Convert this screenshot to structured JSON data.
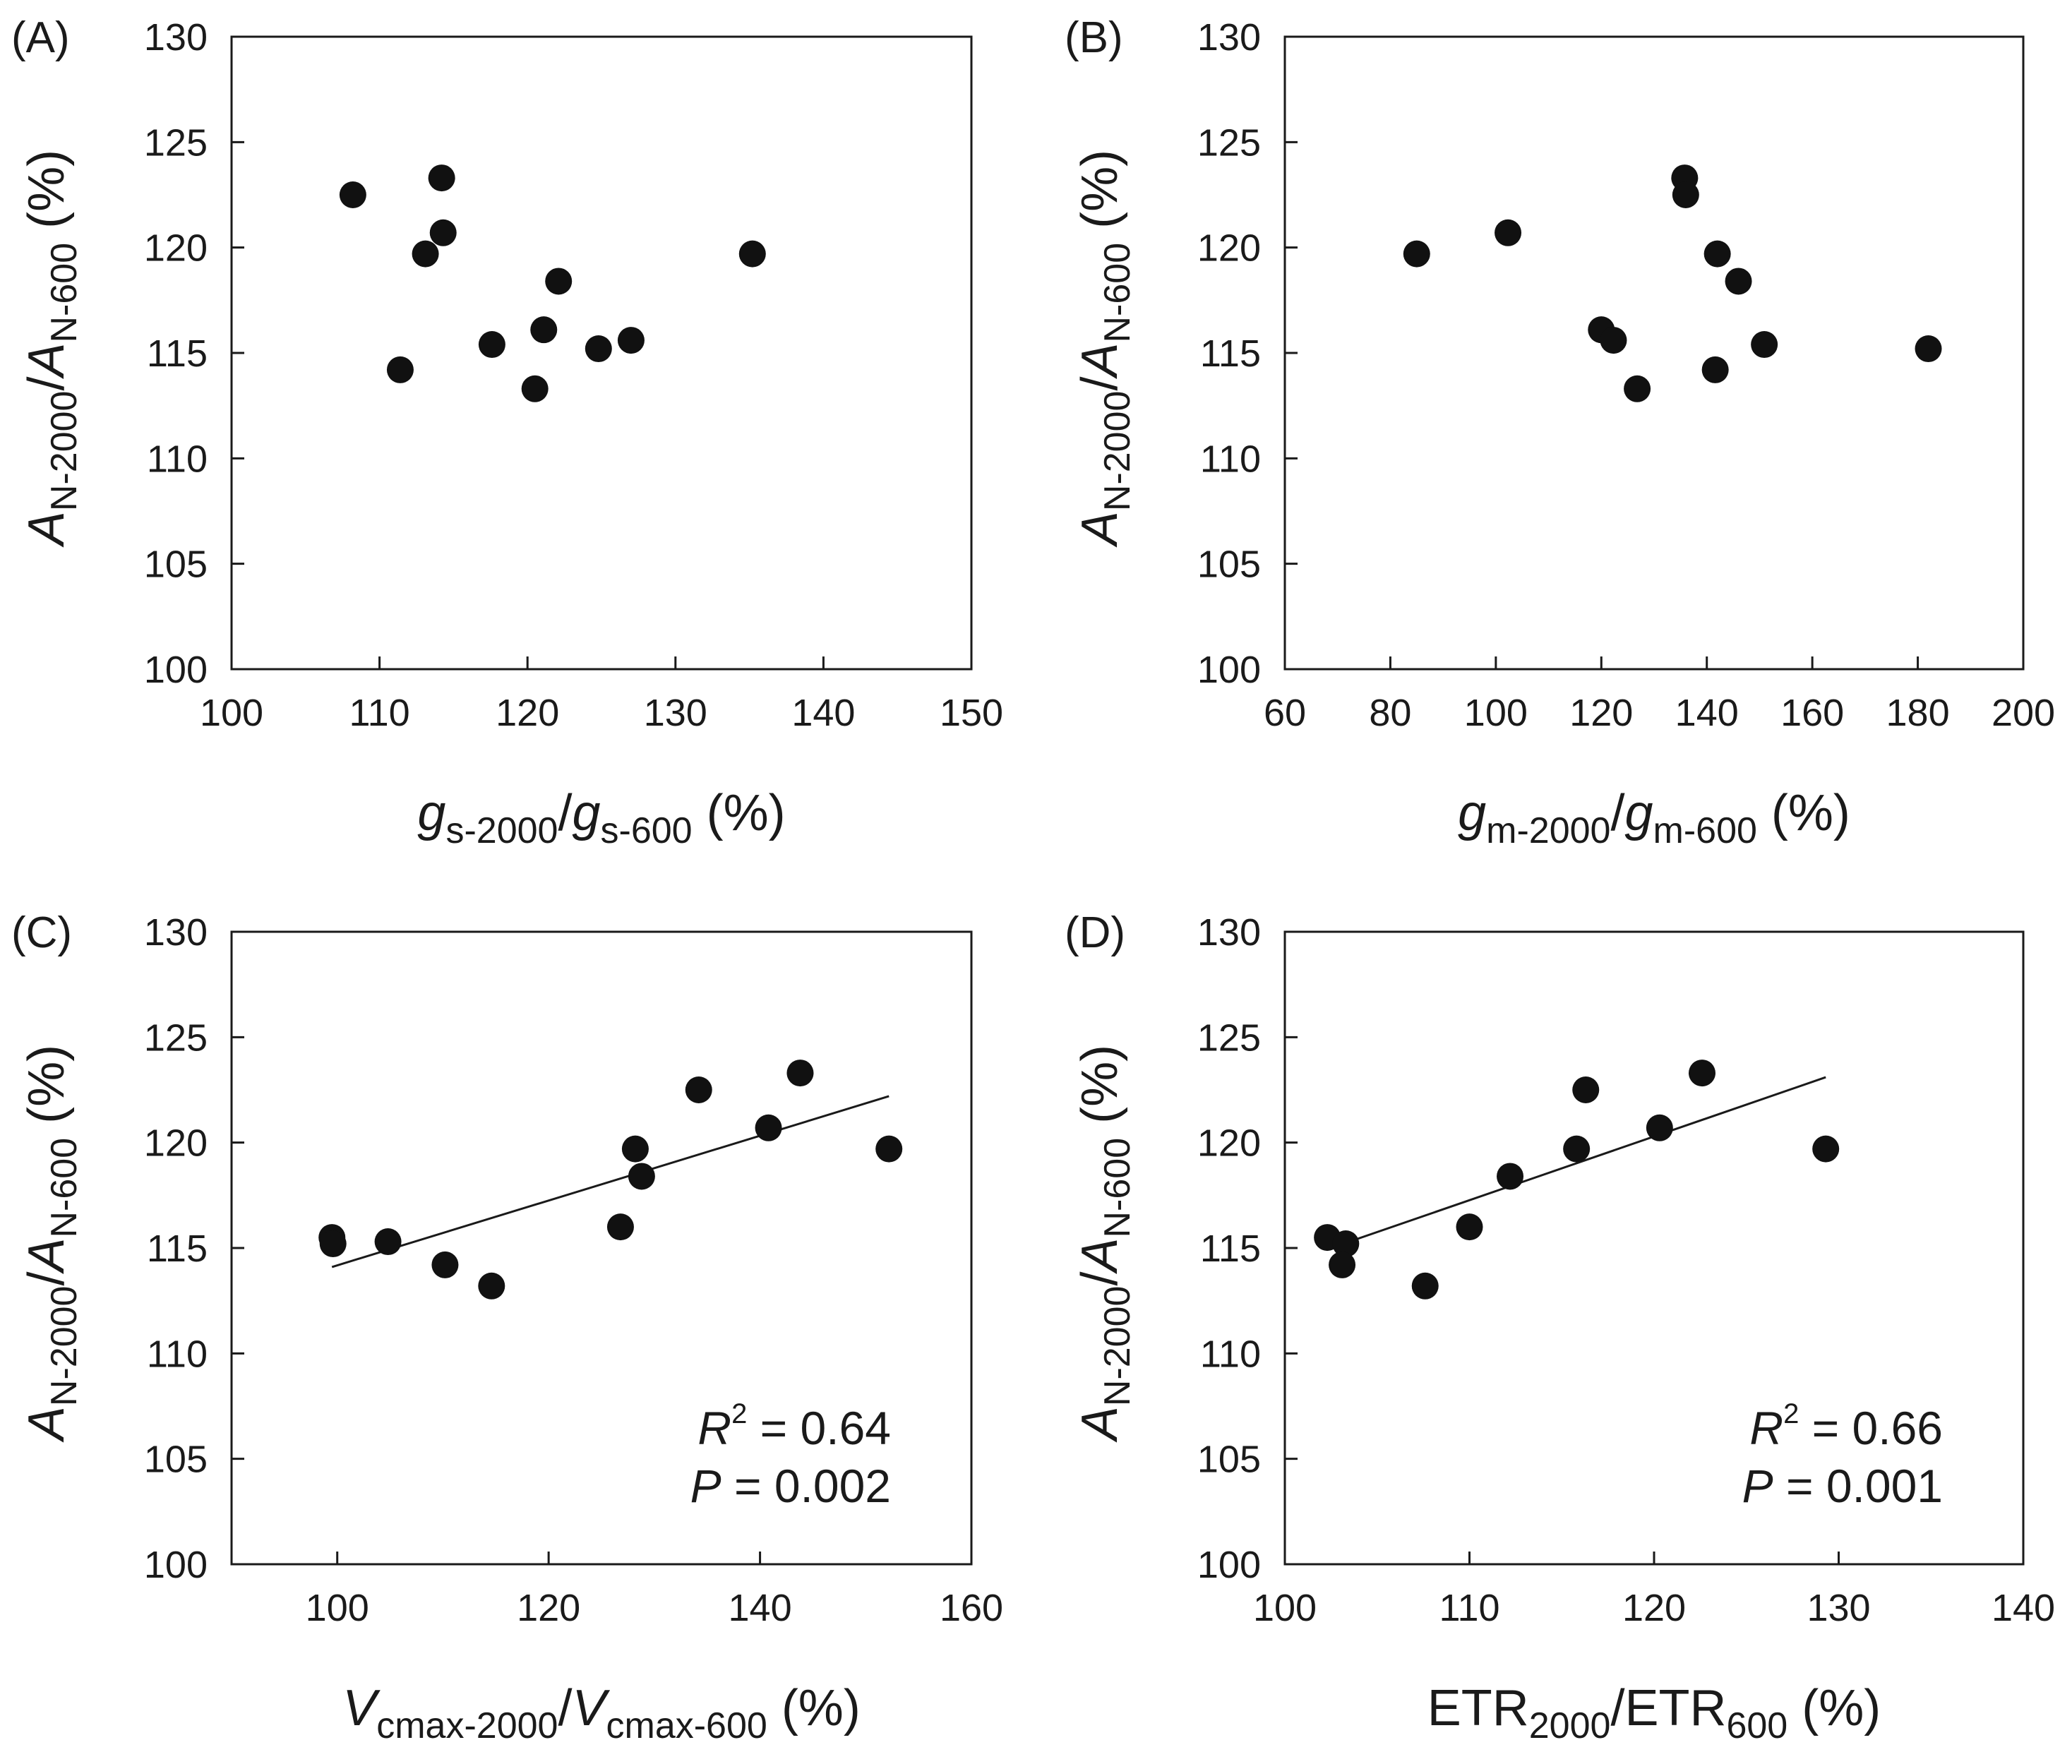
{
  "chart_data": [
    {
      "type": "scatter",
      "panel_label": "(A)",
      "xlabel": {
        "italic": "g",
        "sub1": "s-2000",
        "slash": "/",
        "italic2": "g",
        "sub2": "s-600",
        "unit": " (%)"
      },
      "ylabel": {
        "italic": "A",
        "sub1": "N-2000",
        "slash": "/",
        "italic2": "A",
        "sub2": "N-600",
        "unit": " (%)"
      },
      "xlim": [
        100,
        150
      ],
      "ylim": [
        100,
        130
      ],
      "xticks": [
        "100",
        "110",
        "120",
        "130",
        "140",
        "150"
      ],
      "yticks": [
        "100",
        "105",
        "110",
        "115",
        "120",
        "125",
        "130"
      ],
      "x": [
        108.2,
        114.2,
        113.1,
        114.3,
        111.4,
        117.6,
        121.1,
        122.1,
        120.5,
        124.8,
        127.0,
        135.2
      ],
      "y": [
        122.5,
        123.3,
        119.7,
        120.7,
        114.2,
        115.4,
        116.1,
        118.4,
        113.3,
        115.2,
        115.6,
        119.7
      ],
      "fit_line": null,
      "annotation": null
    },
    {
      "type": "scatter",
      "panel_label": "(B)",
      "xlabel": {
        "italic": "g",
        "sub1": "m-2000",
        "slash": "/",
        "italic2": "g",
        "sub2": "m-600",
        "unit": " (%)"
      },
      "ylabel": {
        "italic": "A",
        "sub1": "N-2000",
        "slash": "/",
        "italic2": "A",
        "sub2": "N-600",
        "unit": " (%)"
      },
      "xlim": [
        60,
        200
      ],
      "ylim": [
        100,
        130
      ],
      "xticks": [
        "60",
        "80",
        "100",
        "120",
        "140",
        "160",
        "180",
        "200"
      ],
      "yticks": [
        "100",
        "105",
        "110",
        "115",
        "120",
        "125",
        "130"
      ],
      "x": [
        85.0,
        102.3,
        135.8,
        136.0,
        142.0,
        146.0,
        120.0,
        122.3,
        126.8,
        141.6,
        150.9,
        182.0
      ],
      "y": [
        119.7,
        120.7,
        123.3,
        122.5,
        119.7,
        118.4,
        116.1,
        115.6,
        113.3,
        114.2,
        115.4,
        115.2
      ],
      "fit_line": null,
      "annotation": null
    },
    {
      "type": "scatter",
      "panel_label": "(C)",
      "xlabel": {
        "italic": "V",
        "sub1": "cmax-2000",
        "slash": "/",
        "italic2": "V",
        "sub2": "cmax-600",
        "unit": " (%)"
      },
      "ylabel": {
        "italic": "A",
        "sub1": "N-2000",
        "slash": "/",
        "italic2": "A",
        "sub2": "N-600",
        "unit": " (%)"
      },
      "xlim": [
        90,
        160
      ],
      "ylim": [
        100,
        130
      ],
      "xticks": [
        "100",
        "120",
        "140",
        "160"
      ],
      "yticks": [
        "100",
        "105",
        "110",
        "115",
        "120",
        "125",
        "130"
      ],
      "x": [
        99.5,
        99.6,
        104.8,
        110.2,
        114.6,
        126.8,
        128.2,
        128.8,
        134.2,
        140.8,
        143.8,
        152.2
      ],
      "y": [
        115.5,
        115.2,
        115.3,
        114.2,
        113.2,
        116.0,
        119.7,
        118.4,
        122.5,
        120.7,
        123.3,
        119.7
      ],
      "fit_line": {
        "x": [
          99.5,
          152.2
        ],
        "y": [
          114.1,
          122.2
        ]
      },
      "annotation": {
        "r2_label": "R",
        "r2_sup": "2",
        "r2_value": " = 0.64",
        "p_label": "P",
        "p_value": " = 0.002"
      }
    },
    {
      "type": "scatter",
      "panel_label": "(D)",
      "xlabel": {
        "italic": "",
        "plain": "ETR",
        "sub1": "2000",
        "slash": "/ETR",
        "sub2": "600",
        "unit": " (%)"
      },
      "ylabel": {
        "italic": "A",
        "sub1": "N-2000",
        "slash": "/",
        "italic2": "A",
        "sub2": "N-600",
        "unit": " (%)"
      },
      "xlim": [
        100,
        140
      ],
      "ylim": [
        100,
        130
      ],
      "xticks": [
        "100",
        "110",
        "120",
        "130",
        "140"
      ],
      "yticks": [
        "100",
        "105",
        "110",
        "115",
        "120",
        "125",
        "130"
      ],
      "x": [
        102.3,
        103.3,
        103.1,
        107.6,
        110.0,
        112.2,
        115.8,
        116.3,
        120.3,
        122.6,
        129.3
      ],
      "y": [
        115.5,
        115.2,
        114.2,
        113.2,
        116.0,
        118.4,
        119.7,
        122.5,
        120.7,
        123.3,
        119.7
      ],
      "fit_line": {
        "x": [
          102.5,
          129.3
        ],
        "y": [
          115.0,
          123.1
        ]
      },
      "annotation": {
        "r2_label": "R",
        "r2_sup": "2",
        "r2_value": " = 0.66",
        "p_label": "P",
        "p_value": " = 0.001"
      }
    }
  ]
}
